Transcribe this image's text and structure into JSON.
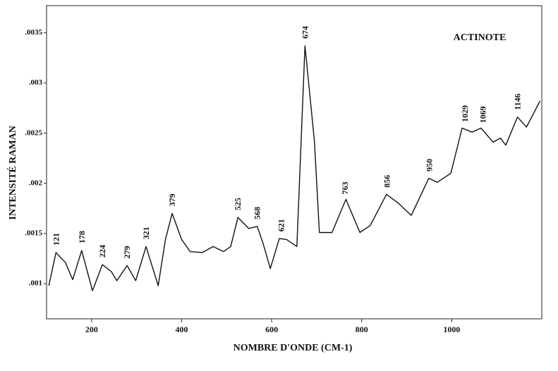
{
  "chart_data": {
    "type": "line",
    "annotation": "ACTINOTE",
    "x_label": "NOMBRE D'ONDE (CM-1)",
    "y_label": "INTENSITÉ RAMAN",
    "xlim": [
      100,
      1200
    ],
    "ylim": [
      0.00065,
      0.00377
    ],
    "xticks": [
      200,
      400,
      600,
      800,
      1000
    ],
    "yticks": [
      {
        "value": 0.001,
        "label": ".001"
      },
      {
        "value": 0.0015,
        "label": ".0015"
      },
      {
        "value": 0.002,
        "label": ".002"
      },
      {
        "value": 0.0025,
        "label": ".0025"
      },
      {
        "value": 0.003,
        "label": ".003"
      },
      {
        "value": 0.0035,
        "label": ".0035"
      }
    ],
    "color": "#111111",
    "peak_labels": [
      121,
      178,
      224,
      279,
      321,
      379,
      525,
      568,
      621,
      674,
      763,
      856,
      950,
      1029,
      1069,
      1146
    ],
    "x": [
      105,
      121,
      142,
      158,
      178,
      202,
      224,
      244,
      256,
      279,
      298,
      321,
      348,
      364,
      379,
      400,
      419,
      446,
      470,
      493,
      509,
      525,
      549,
      568,
      581,
      597,
      617,
      633,
      656,
      674,
      695,
      706,
      734,
      765,
      796,
      819,
      855,
      882,
      910,
      949,
      968,
      998,
      1023,
      1045,
      1065,
      1092,
      1108,
      1120,
      1146,
      1166,
      1196
    ],
    "values": [
      0.00098,
      0.00131,
      0.00121,
      0.00104,
      0.00133,
      0.00093,
      0.00119,
      0.00112,
      0.00103,
      0.00118,
      0.00103,
      0.00137,
      0.00098,
      0.00144,
      0.0017,
      0.00144,
      0.00132,
      0.00131,
      0.00137,
      0.00132,
      0.00137,
      0.00166,
      0.00155,
      0.00157,
      0.0014,
      0.00115,
      0.00145,
      0.00144,
      0.00137,
      0.00337,
      0.00242,
      0.00151,
      0.00151,
      0.00184,
      0.00151,
      0.00158,
      0.00189,
      0.0018,
      0.00168,
      0.00205,
      0.00201,
      0.0021,
      0.00255,
      0.00251,
      0.00255,
      0.00241,
      0.00245,
      0.00238,
      0.00266,
      0.00256,
      0.00282
    ]
  }
}
